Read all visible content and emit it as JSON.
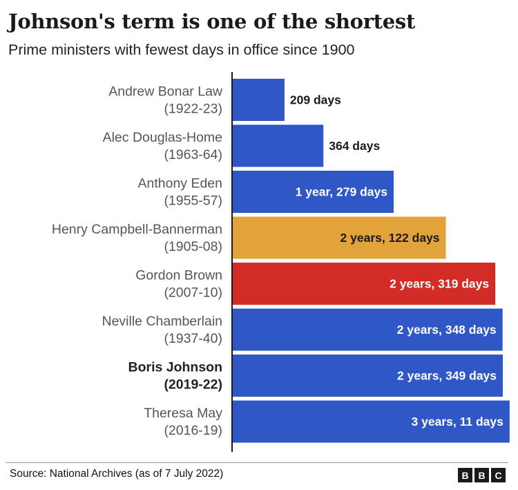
{
  "header": {
    "title": "Johnson's term is one of the shortest",
    "subtitle": "Prime ministers with fewest days in office since 1900"
  },
  "chart_data": {
    "type": "bar",
    "orientation": "horizontal",
    "unit": "days",
    "grid": false,
    "xlim": [
      0,
      1200
    ],
    "colors": {
      "default": "#2f58c6",
      "highlight_orange": "#e2a33b",
      "highlight_red": "#d32c26"
    },
    "bars": [
      {
        "name": "Andrew Bonar Law",
        "years": "(1922-23)",
        "days": 209,
        "label": "209 days",
        "color": "#2f58c6",
        "bold": false
      },
      {
        "name": "Alec Douglas-Home",
        "years": "(1963-64)",
        "days": 364,
        "label": "364 days",
        "color": "#2f58c6",
        "bold": false
      },
      {
        "name": "Anthony Eden",
        "years": "(1955-57)",
        "days": 644,
        "label": "1 year, 279 days",
        "color": "#2f58c6",
        "bold": false
      },
      {
        "name": "Henry Campbell-Bannerman",
        "years": "(1905-08)",
        "days": 852,
        "label": "2 years, 122 days",
        "color": "#e2a33b",
        "bold": false
      },
      {
        "name": "Gordon Brown",
        "years": "(2007-10)",
        "days": 1049,
        "label": "2 years, 319 days",
        "color": "#d32c26",
        "bold": false
      },
      {
        "name": "Neville Chamberlain",
        "years": "(1937-40)",
        "days": 1078,
        "label": "2 years, 348 days",
        "color": "#2f58c6",
        "bold": false
      },
      {
        "name": "Boris Johnson",
        "years": "(2019-22)",
        "days": 1079,
        "label": "2 years, 349 days",
        "color": "#2f58c6",
        "bold": true
      },
      {
        "name": "Theresa May",
        "years": "(2016-19)",
        "days": 1106,
        "label": "3 years, 11 days",
        "color": "#2f58c6",
        "bold": false
      }
    ]
  },
  "footer": {
    "source": "Source: National Archives (as of 7 July 2022)",
    "logo_letters": [
      "B",
      "B",
      "C"
    ]
  }
}
